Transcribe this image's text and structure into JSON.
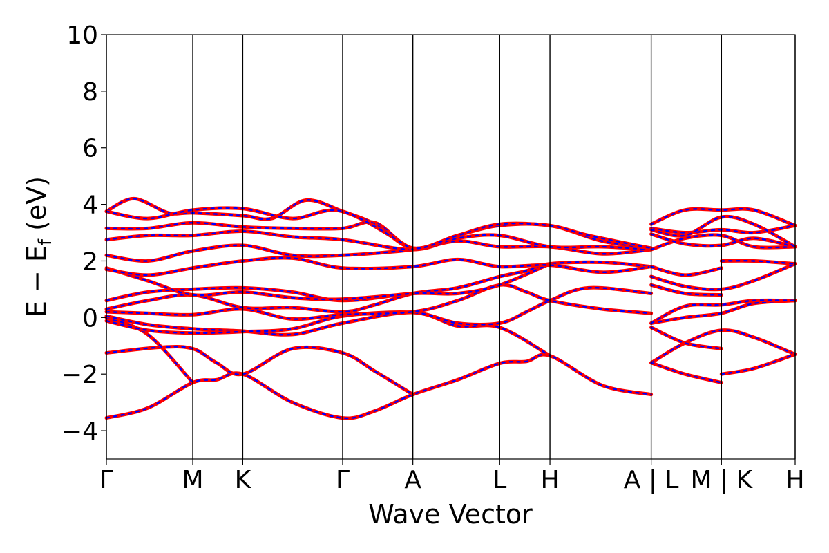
{
  "chart_data": {
    "type": "line",
    "title": "",
    "xlabel": "Wave Vector",
    "ylabel_main": "E − E",
    "ylabel_sub": "f",
    "ylabel_unit": " (eV)",
    "ylim": [
      -5,
      10
    ],
    "yticks": [
      {
        "value": 10,
        "label": "10"
      },
      {
        "value": 8,
        "label": "8"
      },
      {
        "value": 6,
        "label": "6"
      },
      {
        "value": 4,
        "label": "4"
      },
      {
        "value": 2,
        "label": "2"
      },
      {
        "value": 0,
        "label": "0"
      },
      {
        "value": -2,
        "label": "−2"
      },
      {
        "value": -4,
        "label": "−4"
      }
    ],
    "xlim": [
      0,
      10
    ],
    "kpoints": [
      {
        "label": "Γ",
        "x": 0.0
      },
      {
        "label": "M",
        "x": 1.254
      },
      {
        "label": "K",
        "x": 1.98
      },
      {
        "label": "Γ",
        "x": 3.43
      },
      {
        "label": "A",
        "x": 4.45
      },
      {
        "label": "L",
        "x": 5.71
      },
      {
        "label": "H",
        "x": 6.44
      },
      {
        "label": "A | L",
        "x": 7.91
      },
      {
        "label": "M | K",
        "x": 8.93
      },
      {
        "label": "H",
        "x": 10.0
      }
    ],
    "grid": false,
    "legend": "none",
    "colors": {
      "spin_up": "#ff0000",
      "spin_down": "#0000ff"
    },
    "series": [
      {
        "points": [
          [
            0,
            -3.55
          ],
          [
            0.6,
            -3.2
          ],
          [
            1.254,
            -2.3
          ],
          [
            1.6,
            -2.2
          ],
          [
            1.98,
            -2.0
          ],
          [
            2.7,
            -3.0
          ],
          [
            3.43,
            -3.55
          ],
          [
            3.9,
            -3.3
          ],
          [
            4.45,
            -2.72
          ],
          [
            5.1,
            -2.2
          ],
          [
            5.71,
            -1.62
          ],
          [
            6.1,
            -1.55
          ],
          [
            6.44,
            -1.35
          ],
          [
            7.2,
            -2.4
          ],
          [
            7.91,
            -2.72
          ]
        ]
      },
      {
        "points": [
          [
            0,
            -1.25
          ],
          [
            0.8,
            -1.05
          ],
          [
            1.254,
            -1.1
          ],
          [
            1.6,
            -1.6
          ],
          [
            1.98,
            -2.0
          ],
          [
            2.7,
            -1.1
          ],
          [
            3.43,
            -1.25
          ],
          [
            3.9,
            -1.9
          ],
          [
            4.45,
            -2.72
          ]
        ]
      },
      {
        "points": [
          [
            0,
            0.0
          ],
          [
            0.6,
            -0.6
          ],
          [
            1.254,
            -2.3
          ]
        ]
      },
      {
        "points": [
          [
            0,
            0.05
          ],
          [
            0.6,
            -0.25
          ],
          [
            1.254,
            -0.4
          ],
          [
            1.98,
            -0.48
          ],
          [
            2.7,
            -0.6
          ],
          [
            3.43,
            -0.2
          ],
          [
            4.45,
            0.18
          ],
          [
            5.1,
            -0.3
          ],
          [
            5.71,
            -0.35
          ],
          [
            6.44,
            -1.35
          ]
        ]
      },
      {
        "points": [
          [
            0,
            -0.12
          ],
          [
            0.6,
            -0.45
          ],
          [
            1.254,
            -0.55
          ],
          [
            1.98,
            -0.5
          ],
          [
            2.7,
            -0.4
          ],
          [
            3.43,
            0.05
          ],
          [
            4.45,
            0.18
          ],
          [
            5.1,
            -0.2
          ],
          [
            5.71,
            -0.2
          ],
          [
            6.1,
            0.2
          ],
          [
            6.44,
            0.6
          ],
          [
            7.0,
            1.05
          ],
          [
            7.91,
            0.85
          ]
        ]
      },
      {
        "points": [
          [
            0,
            0.2
          ],
          [
            0.6,
            0.15
          ],
          [
            1.254,
            0.1
          ],
          [
            1.98,
            0.3
          ],
          [
            2.7,
            -0.05
          ],
          [
            3.43,
            0.1
          ],
          [
            4.45,
            0.2
          ],
          [
            5.1,
            0.6
          ],
          [
            5.71,
            1.15
          ],
          [
            6.1,
            0.9
          ],
          [
            6.44,
            0.6
          ],
          [
            7.2,
            0.3
          ],
          [
            7.91,
            0.15
          ]
        ]
      },
      {
        "points": [
          [
            0,
            0.3
          ],
          [
            0.6,
            0.6
          ],
          [
            1.254,
            0.8
          ],
          [
            1.98,
            0.35
          ],
          [
            2.7,
            0.35
          ],
          [
            3.43,
            0.2
          ],
          [
            3.9,
            0.45
          ],
          [
            4.45,
            0.85
          ],
          [
            5.1,
            1.05
          ],
          [
            5.71,
            1.45
          ],
          [
            6.1,
            1.65
          ],
          [
            6.44,
            1.9
          ],
          [
            7.2,
            1.95
          ],
          [
            7.91,
            1.8
          ]
        ]
      },
      {
        "points": [
          [
            0,
            0.6
          ],
          [
            0.6,
            0.9
          ],
          [
            1.254,
            1.0
          ],
          [
            1.98,
            1.05
          ],
          [
            2.7,
            0.9
          ],
          [
            3.43,
            0.6
          ],
          [
            4.45,
            0.85
          ],
          [
            5.1,
            0.85
          ],
          [
            5.71,
            1.15
          ],
          [
            6.44,
            1.9
          ]
        ]
      },
      {
        "points": [
          [
            0,
            1.75
          ],
          [
            0.6,
            1.3
          ],
          [
            1.254,
            0.8
          ],
          [
            1.98,
            0.9
          ],
          [
            2.7,
            0.7
          ],
          [
            3.43,
            0.65
          ],
          [
            4.45,
            0.85
          ]
        ]
      },
      {
        "points": [
          [
            0,
            1.7
          ],
          [
            0.6,
            1.5
          ],
          [
            1.254,
            1.75
          ],
          [
            1.98,
            2.0
          ],
          [
            2.7,
            2.1
          ],
          [
            3.43,
            1.75
          ],
          [
            4.45,
            1.8
          ],
          [
            5.1,
            2.05
          ],
          [
            5.71,
            1.8
          ],
          [
            6.44,
            1.85
          ],
          [
            7.2,
            1.6
          ],
          [
            7.91,
            1.8
          ]
        ]
      },
      {
        "points": [
          [
            0,
            2.2
          ],
          [
            0.6,
            2.0
          ],
          [
            1.254,
            2.35
          ],
          [
            1.98,
            2.55
          ],
          [
            2.7,
            2.2
          ],
          [
            3.43,
            2.2
          ],
          [
            4.45,
            2.4
          ],
          [
            5.1,
            2.7
          ],
          [
            5.71,
            2.5
          ],
          [
            6.44,
            2.5
          ],
          [
            7.2,
            2.25
          ],
          [
            7.91,
            2.4
          ]
        ]
      },
      {
        "points": [
          [
            0,
            2.75
          ],
          [
            0.6,
            2.9
          ],
          [
            1.254,
            2.9
          ],
          [
            1.98,
            3.05
          ],
          [
            2.7,
            2.85
          ],
          [
            3.43,
            2.75
          ],
          [
            4.45,
            2.4
          ],
          [
            5.1,
            2.8
          ],
          [
            5.71,
            2.9
          ],
          [
            6.44,
            2.5
          ],
          [
            7.2,
            2.5
          ],
          [
            7.91,
            2.4
          ]
        ]
      },
      {
        "points": [
          [
            0,
            3.15
          ],
          [
            0.6,
            3.15
          ],
          [
            1.254,
            3.35
          ],
          [
            1.98,
            3.2
          ],
          [
            2.7,
            3.15
          ],
          [
            3.43,
            3.15
          ],
          [
            3.9,
            3.35
          ],
          [
            4.45,
            2.45
          ],
          [
            5.1,
            2.9
          ],
          [
            5.71,
            3.25
          ],
          [
            6.44,
            3.25
          ],
          [
            7.2,
            2.7
          ],
          [
            7.91,
            2.45
          ]
        ]
      },
      {
        "points": [
          [
            0,
            3.75
          ],
          [
            0.4,
            4.2
          ],
          [
            0.9,
            3.7
          ],
          [
            1.254,
            3.7
          ],
          [
            1.98,
            3.6
          ],
          [
            2.4,
            3.5
          ],
          [
            2.9,
            4.15
          ],
          [
            3.43,
            3.75
          ],
          [
            3.9,
            3.3
          ],
          [
            4.45,
            2.45
          ],
          [
            5.1,
            2.9
          ],
          [
            5.71,
            3.3
          ],
          [
            6.44,
            3.25
          ],
          [
            7.0,
            2.9
          ],
          [
            7.91,
            2.45
          ]
        ]
      },
      {
        "points": [
          [
            0,
            3.75
          ],
          [
            0.6,
            3.5
          ],
          [
            1.254,
            3.8
          ],
          [
            1.98,
            3.85
          ],
          [
            2.7,
            3.5
          ],
          [
            3.43,
            3.75
          ],
          [
            4.45,
            2.4
          ]
        ]
      },
      {
        "points": [
          [
            7.91,
            -1.6
          ],
          [
            8.4,
            -0.9
          ],
          [
            8.93,
            -0.45
          ],
          [
            9.4,
            -0.7
          ],
          [
            10.0,
            -1.3
          ]
        ]
      },
      {
        "points": [
          [
            7.91,
            -1.6
          ],
          [
            8.4,
            -2.0
          ],
          [
            8.93,
            -2.3
          ]
        ]
      },
      {
        "points": [
          [
            8.93,
            -2.0
          ],
          [
            9.4,
            -1.8
          ],
          [
            10.0,
            -1.3
          ]
        ]
      },
      {
        "points": [
          [
            7.91,
            -0.35
          ],
          [
            8.4,
            -0.9
          ],
          [
            8.93,
            -1.1
          ]
        ]
      },
      {
        "points": [
          [
            7.91,
            -0.2
          ],
          [
            8.4,
            0.0
          ],
          [
            8.93,
            0.15
          ],
          [
            9.4,
            0.5
          ],
          [
            10.0,
            0.6
          ]
        ]
      },
      {
        "points": [
          [
            7.91,
            -0.2
          ],
          [
            8.4,
            0.4
          ],
          [
            8.93,
            0.45
          ],
          [
            9.4,
            0.6
          ],
          [
            10.0,
            0.6
          ]
        ]
      },
      {
        "points": [
          [
            7.91,
            1.15
          ],
          [
            8.4,
            0.85
          ],
          [
            8.93,
            0.8
          ]
        ]
      },
      {
        "points": [
          [
            7.91,
            1.45
          ],
          [
            8.4,
            1.1
          ],
          [
            8.93,
            1.0
          ],
          [
            9.4,
            1.3
          ],
          [
            10.0,
            1.9
          ]
        ]
      },
      {
        "points": [
          [
            7.91,
            1.8
          ],
          [
            8.4,
            1.5
          ],
          [
            8.93,
            1.75
          ]
        ]
      },
      {
        "points": [
          [
            8.93,
            2.0
          ],
          [
            9.4,
            2.0
          ],
          [
            10.0,
            1.9
          ]
        ]
      },
      {
        "points": [
          [
            7.91,
            2.4
          ],
          [
            8.4,
            2.8
          ],
          [
            8.93,
            2.9
          ],
          [
            9.4,
            2.5
          ],
          [
            10.0,
            2.5
          ]
        ]
      },
      {
        "points": [
          [
            7.91,
            2.95
          ],
          [
            8.4,
            2.6
          ],
          [
            8.93,
            2.55
          ],
          [
            9.4,
            2.8
          ],
          [
            10.0,
            2.5
          ]
        ]
      },
      {
        "points": [
          [
            7.91,
            3.15
          ],
          [
            8.4,
            3.0
          ],
          [
            8.93,
            3.1
          ],
          [
            9.4,
            3.0
          ],
          [
            10.0,
            3.25
          ]
        ]
      },
      {
        "points": [
          [
            7.91,
            3.3
          ],
          [
            8.4,
            3.8
          ],
          [
            8.93,
            3.8
          ],
          [
            9.4,
            3.8
          ],
          [
            10.0,
            3.25
          ]
        ]
      },
      {
        "points": [
          [
            7.91,
            3.1
          ],
          [
            8.4,
            2.9
          ],
          [
            8.93,
            3.55
          ],
          [
            9.4,
            3.3
          ],
          [
            10.0,
            2.5
          ]
        ]
      }
    ]
  }
}
